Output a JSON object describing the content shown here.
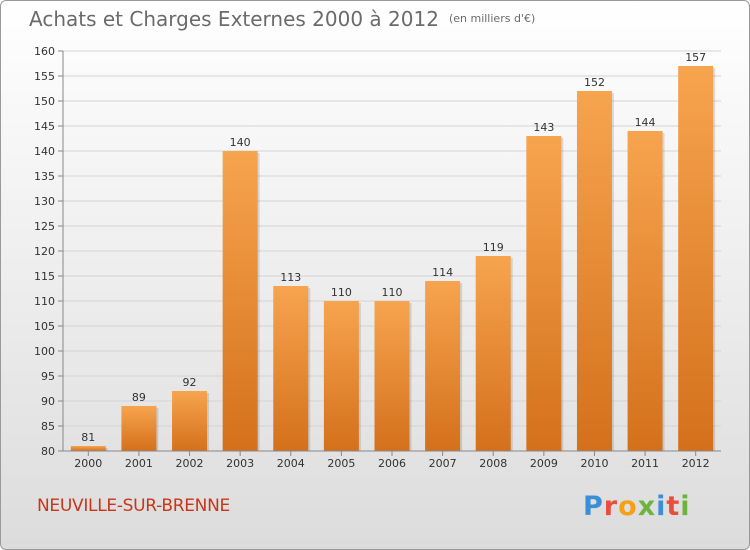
{
  "title": "Achats et Charges Externes 2000 à 2012",
  "unit": "(en milliers d'€)",
  "place": "NEUVILLE-SUR-BRENNE",
  "logo": {
    "letters": [
      "P",
      "r",
      "o",
      "x",
      "i",
      "t",
      "i"
    ],
    "colors": [
      "#3a8fd6",
      "#e94e3d",
      "#f6a01a",
      "#6db33f",
      "#3a8fd6",
      "#e94e3d",
      "#6db33f"
    ]
  },
  "colors": {
    "bar_top": "#f7a44f",
    "bar_bottom": "#d4701c",
    "title": "#6b6b6b",
    "place": "#c8361a"
  },
  "chart_data": {
    "type": "bar",
    "title": "Achats et Charges Externes 2000 à 2012",
    "categories": [
      "2000",
      "2001",
      "2002",
      "2003",
      "2004",
      "2005",
      "2006",
      "2007",
      "2008",
      "2009",
      "2010",
      "2011",
      "2012"
    ],
    "values": [
      81,
      89,
      92,
      140,
      113,
      110,
      110,
      114,
      119,
      143,
      152,
      144,
      157
    ],
    "ylim": [
      80,
      160
    ],
    "yticks": [
      80,
      85,
      90,
      95,
      100,
      105,
      110,
      115,
      120,
      125,
      130,
      135,
      140,
      145,
      150,
      155,
      160
    ],
    "grid": true
  }
}
